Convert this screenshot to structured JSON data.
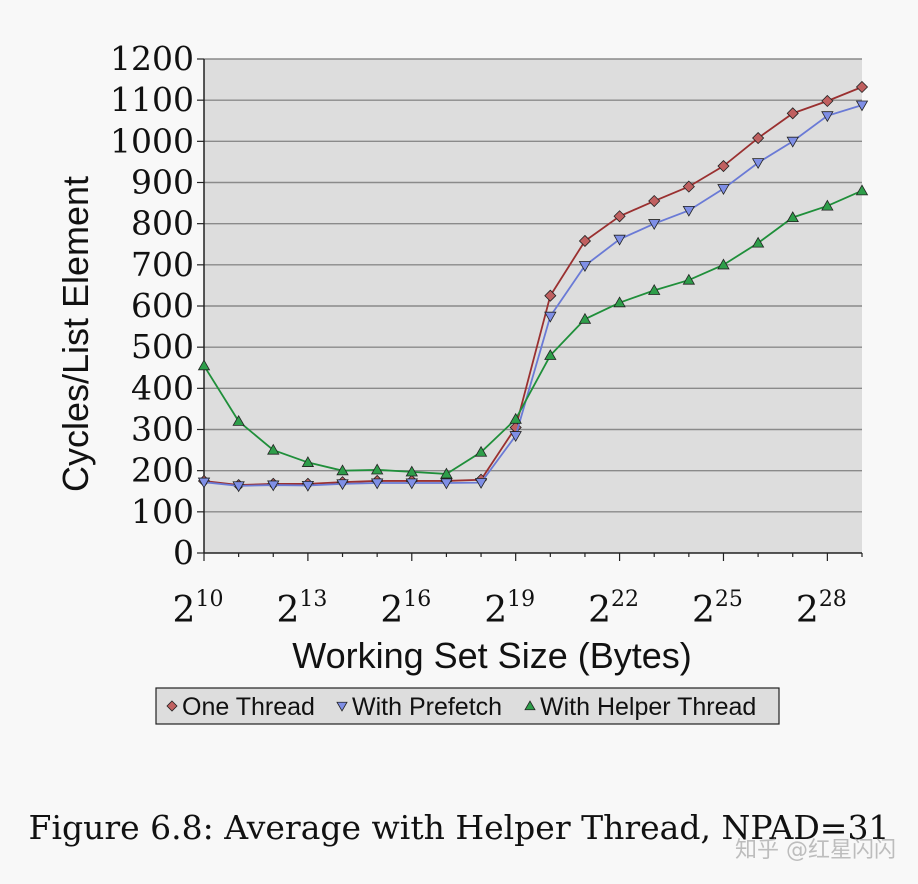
{
  "chart_data": {
    "type": "line",
    "x": [
      10,
      11,
      12,
      13,
      14,
      15,
      16,
      17,
      18,
      19,
      20,
      21,
      22,
      23,
      24,
      25,
      26,
      27,
      28,
      29
    ],
    "x_tick_values": [
      10,
      13,
      16,
      19,
      22,
      25,
      28
    ],
    "x_tick_base": "2",
    "xlabel": "Working Set Size (Bytes)",
    "ylabel": "Cycles/List Element",
    "ylim": [
      0,
      1200
    ],
    "y_ticks": [
      0,
      100,
      200,
      300,
      400,
      500,
      600,
      700,
      800,
      900,
      1000,
      1100,
      1200
    ],
    "grid": "horizontal",
    "legend_position": "bottom",
    "series": [
      {
        "name": "One Thread",
        "marker": "diamond",
        "color": "#c06060",
        "line_color": "#9a3030",
        "values": [
          175,
          165,
          168,
          168,
          172,
          175,
          175,
          175,
          178,
          305,
          625,
          758,
          818,
          855,
          890,
          940,
          1008,
          1068,
          1098,
          1132
        ]
      },
      {
        "name": "With Prefetch",
        "marker": "triangle-down",
        "color": "#7f8fe6",
        "line_color": "#6a7ad6",
        "values": [
          172,
          163,
          165,
          164,
          168,
          170,
          170,
          170,
          171,
          285,
          575,
          698,
          762,
          800,
          832,
          885,
          948,
          1000,
          1062,
          1088
        ]
      },
      {
        "name": "With Helper Thread",
        "marker": "triangle-up",
        "color": "#2e9e4a",
        "line_color": "#1f8f3a",
        "values": [
          455,
          320,
          250,
          220,
          200,
          202,
          197,
          192,
          245,
          325,
          480,
          568,
          608,
          638,
          663,
          700,
          753,
          815,
          843,
          880
        ]
      }
    ]
  },
  "caption": "Figure 6.8: Average with Helper Thread, NPAD=31",
  "watermark": "知乎 @红星闪闪"
}
